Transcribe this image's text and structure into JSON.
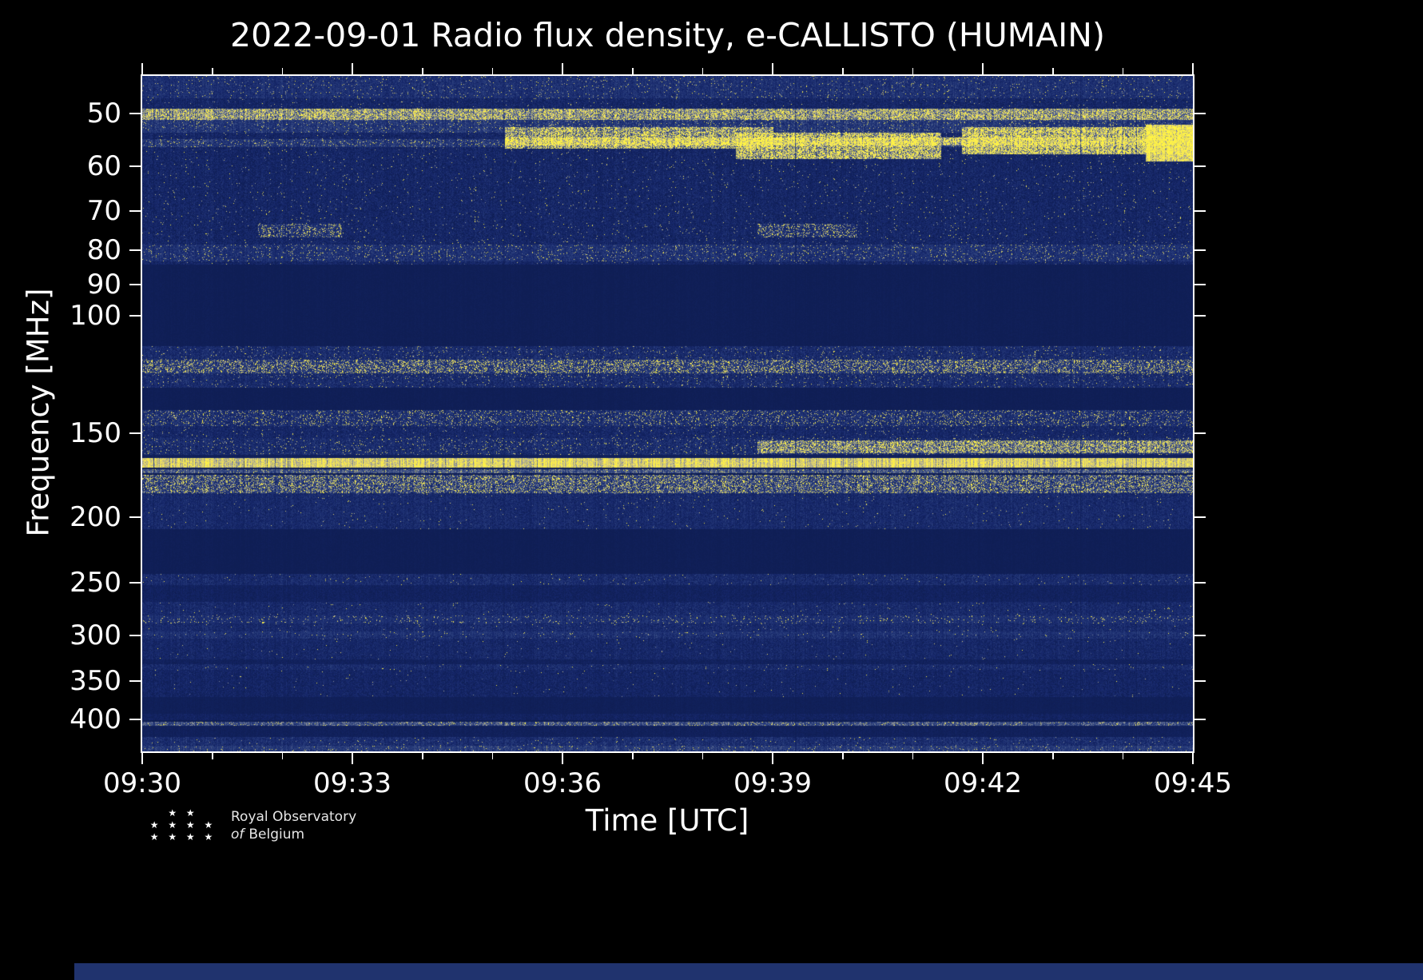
{
  "page": {
    "background_color": "#000000",
    "text_color": "#ffffff",
    "bottom_strip_color": "#20336e"
  },
  "logo": {
    "stars_icon": "star-cluster-icon",
    "stars_row1": "★ ★",
    "stars_row2": "★ ★ ★ ★",
    "stars_row3": "★ ★ ★ ★",
    "org_line1": "Royal Observatory",
    "org_word_italic": "of",
    "org_line2_rest": "Belgium"
  },
  "chart_data": {
    "type": "heatmap",
    "subtype": "radio-spectrogram",
    "title": "2022-09-01 Radio flux density, e-CALLISTO (HUMAIN)",
    "xlabel": "Time [UTC]",
    "ylabel": "Frequency [MHz]",
    "grid": false,
    "legend": "none",
    "x_range": [
      "09:30",
      "09:45"
    ],
    "x_span_minutes": 15,
    "x_major_ticks": [
      "09:30",
      "09:33",
      "09:36",
      "09:39",
      "09:42",
      "09:45"
    ],
    "x_minor_every_minutes": 1,
    "y_scale": "log-inverted",
    "y_range_mhz": [
      44,
      446
    ],
    "y_ticks_mhz": [
      50,
      60,
      70,
      80,
      90,
      100,
      150,
      200,
      250,
      300,
      350,
      400
    ],
    "colormap_stops": [
      {
        "v": 0.0,
        "color": "#0b1947"
      },
      {
        "v": 0.18,
        "color": "#16276b"
      },
      {
        "v": 0.38,
        "color": "#2f4480"
      },
      {
        "v": 0.55,
        "color": "#6f7a95"
      },
      {
        "v": 0.7,
        "color": "#b9b490"
      },
      {
        "v": 0.85,
        "color": "#eede62"
      },
      {
        "v": 1.0,
        "color": "#fff344"
      }
    ],
    "background_value": 0.055,
    "bands": [
      {
        "name": "top-edge-haze",
        "f1": 44,
        "f2": 47.5,
        "base": 0.22,
        "noise": 0.13,
        "speckle": 0.02
      },
      {
        "name": "vhf-low-noise",
        "f1": 44,
        "f2": 84,
        "base": 0.16,
        "noise": 0.1,
        "speckle": 0.012
      },
      {
        "name": "50mhz-line",
        "f1": 49.2,
        "f2": 51.2,
        "base": 0.55,
        "noise": 0.22,
        "speckle": 0.25
      },
      {
        "name": "52mhz-shelf",
        "f1": 51.2,
        "f2": 53.5,
        "base": 0.28,
        "noise": 0.14,
        "speckle": 0.03
      },
      {
        "name": "55mhz-line",
        "f1": 54.6,
        "f2": 56.2,
        "base": 0.28,
        "noise": 0.16,
        "speckle": 0.05
      },
      {
        "name": "burst-onset",
        "f1": 52.5,
        "f2": 56.5,
        "t1": 0.345,
        "t2": 0.6,
        "base": 0.5,
        "noise": 0.25,
        "speckle": 0.35
      },
      {
        "name": "burst-drift-line",
        "f1": 54.3,
        "f2": 55.9,
        "t1": 0.345,
        "t2": 1.0,
        "base": 0.62,
        "noise": 0.22,
        "speckle": 0.3
      },
      {
        "name": "burst-mid-blobs",
        "f1": 53.5,
        "f2": 58.5,
        "t1": 0.565,
        "t2": 0.76,
        "base": 0.55,
        "noise": 0.28,
        "speckle": 0.4
      },
      {
        "name": "burst-late",
        "f1": 52.5,
        "f2": 57.5,
        "t1": 0.78,
        "t2": 1.0,
        "base": 0.58,
        "noise": 0.26,
        "speckle": 0.4
      },
      {
        "name": "burst-right-edge",
        "f1": 52,
        "f2": 59,
        "t1": 0.955,
        "t2": 1.0,
        "base": 0.78,
        "noise": 0.18,
        "speckle": 0.3
      },
      {
        "name": "75mhz-speckles-a",
        "f1": 73,
        "f2": 76.5,
        "t1": 0.11,
        "t2": 0.19,
        "base": 0.22,
        "noise": 0.13,
        "speckle": 0.2
      },
      {
        "name": "75mhz-speckles-b",
        "f1": 73,
        "f2": 76.5,
        "t1": 0.585,
        "t2": 0.68,
        "base": 0.22,
        "noise": 0.13,
        "speckle": 0.2
      },
      {
        "name": "80mhz-band",
        "f1": 78.5,
        "f2": 83,
        "base": 0.23,
        "noise": 0.13,
        "speckle": 0.04
      },
      {
        "name": "quiet-fm-gap",
        "f1": 84,
        "f2": 111,
        "base": 0.08,
        "noise": 0.015,
        "speckle": 0
      },
      {
        "name": "airband-noise",
        "f1": 111,
        "f2": 128,
        "base": 0.2,
        "noise": 0.12,
        "speckle": 0.03
      },
      {
        "name": "airband-voice-line",
        "f1": 116.5,
        "f2": 122,
        "base": 0.26,
        "noise": 0.16,
        "speckle": 0.22
      },
      {
        "name": "quiet-130",
        "f1": 128,
        "f2": 138.5,
        "base": 0.08,
        "noise": 0.015,
        "speckle": 0
      },
      {
        "name": "140mhz-band",
        "f1": 138.5,
        "f2": 146,
        "base": 0.23,
        "noise": 0.14,
        "speckle": 0.1
      },
      {
        "name": "147mhz-band",
        "f1": 146,
        "f2": 152.5,
        "base": 0.17,
        "noise": 0.1,
        "speckle": 0.02
      },
      {
        "name": "155mhz-band",
        "f1": 152.5,
        "f2": 161.5,
        "base": 0.21,
        "noise": 0.13,
        "speckle": 0.04
      },
      {
        "name": "155mhz-bright-late",
        "f1": 153.5,
        "f2": 160.5,
        "t1": 0.585,
        "t2": 1.0,
        "base": 0.45,
        "noise": 0.22,
        "speckle": 0.3
      },
      {
        "name": "gap-162",
        "f1": 161.5,
        "f2": 163.2,
        "base": 0.1,
        "noise": 0.03,
        "speckle": 0
      },
      {
        "name": "165mhz-bright-band",
        "f1": 163.2,
        "f2": 168.5,
        "base": 0.78,
        "noise": 0.13,
        "speckle": 0.1
      },
      {
        "name": "170mhz-pale-line",
        "f1": 169.5,
        "f2": 171.8,
        "base": 0.42,
        "noise": 0.15,
        "speckle": 0.05
      },
      {
        "name": "175mhz-speckled-lines",
        "f1": 173,
        "f2": 184,
        "base": 0.33,
        "noise": 0.22,
        "speckle": 0.2
      },
      {
        "name": "190mhz-noise",
        "f1": 184,
        "f2": 208,
        "base": 0.19,
        "noise": 0.1,
        "speckle": 0.008
      },
      {
        "name": "quiet-225",
        "f1": 208,
        "f2": 243,
        "base": 0.08,
        "noise": 0.015,
        "speckle": 0
      },
      {
        "name": "247mhz-band",
        "f1": 243,
        "f2": 252,
        "base": 0.2,
        "noise": 0.11,
        "speckle": 0.01
      },
      {
        "name": "low-260",
        "f1": 252,
        "f2": 267,
        "base": 0.12,
        "noise": 0.05,
        "speckle": 0
      },
      {
        "name": "280mhz-noise",
        "f1": 267,
        "f2": 300,
        "base": 0.19,
        "noise": 0.1,
        "speckle": 0.006
      },
      {
        "name": "285mhz-speckles",
        "f1": 280,
        "f2": 288,
        "base": 0.21,
        "noise": 0.11,
        "speckle": 0.05
      },
      {
        "name": "298mhz-line",
        "f1": 296,
        "f2": 303,
        "base": 0.23,
        "noise": 0.12,
        "speckle": 0.01
      },
      {
        "name": "310mhz-noise",
        "f1": 303,
        "f2": 325,
        "base": 0.17,
        "noise": 0.09,
        "speckle": 0.004
      },
      {
        "name": "low-328",
        "f1": 325,
        "f2": 331,
        "base": 0.11,
        "noise": 0.04,
        "speckle": 0
      },
      {
        "name": "334mhz-line",
        "f1": 331,
        "f2": 337,
        "base": 0.2,
        "noise": 0.11,
        "speckle": 0.008
      },
      {
        "name": "350mhz-faint",
        "f1": 337,
        "f2": 370,
        "base": 0.15,
        "noise": 0.08,
        "speckle": 0.003
      },
      {
        "name": "quiet-380",
        "f1": 370,
        "f2": 392,
        "base": 0.09,
        "noise": 0.02,
        "speckle": 0
      },
      {
        "name": "396mhz-faint",
        "f1": 392,
        "f2": 401,
        "base": 0.13,
        "noise": 0.06,
        "speckle": 0
      },
      {
        "name": "406mhz-yellow-line",
        "f1": 403,
        "f2": 409,
        "base": 0.4,
        "noise": 0.18,
        "speckle": 0.06
      },
      {
        "name": "quiet-416",
        "f1": 409,
        "f2": 424,
        "base": 0.1,
        "noise": 0.03,
        "speckle": 0
      },
      {
        "name": "bottom-noise",
        "f1": 424,
        "f2": 446,
        "base": 0.22,
        "noise": 0.12,
        "speckle": 0.01
      },
      {
        "name": "bottom-edge-haze",
        "f1": 438,
        "f2": 446,
        "base": 0.3,
        "noise": 0.12,
        "speckle": 0.02
      }
    ]
  }
}
